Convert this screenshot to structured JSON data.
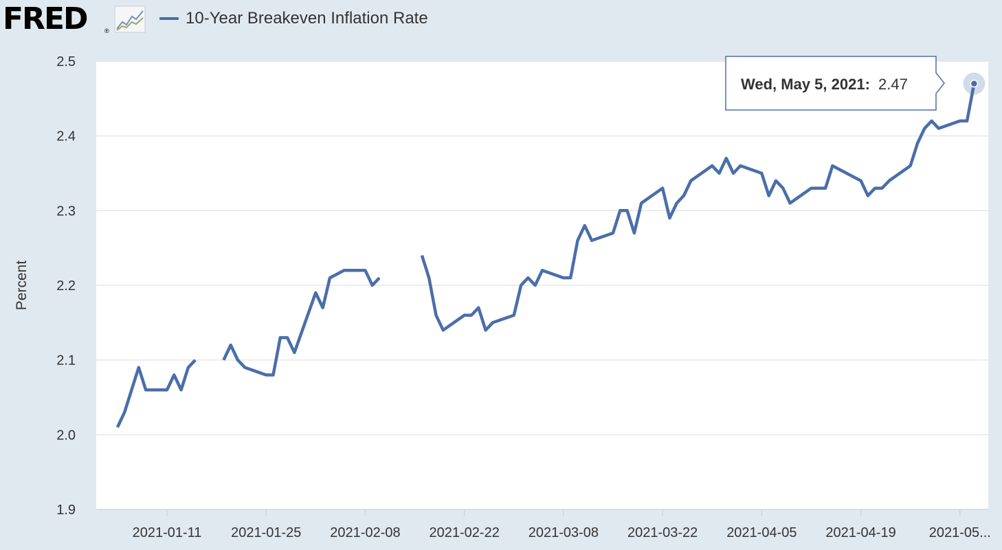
{
  "header": {
    "logo_text": "FRED",
    "logo_reg": "®",
    "graph_icon": "fred-line-graph-icon"
  },
  "chart_data": {
    "type": "line",
    "series": [
      {
        "name": "10-Year Breakeven Inflation Rate",
        "color": "#4a6ea9",
        "points": [
          [
            "2021-01-04",
            2.01
          ],
          [
            "2021-01-05",
            2.03
          ],
          [
            "2021-01-06",
            2.06
          ],
          [
            "2021-01-07",
            2.09
          ],
          [
            "2021-01-08",
            2.06
          ],
          [
            "2021-01-11",
            2.06
          ],
          [
            "2021-01-12",
            2.08
          ],
          [
            "2021-01-13",
            2.06
          ],
          [
            "2021-01-14",
            2.09
          ],
          [
            "2021-01-15",
            2.1
          ],
          [
            "2021-01-18",
            null
          ],
          [
            "2021-01-19",
            2.1
          ],
          [
            "2021-01-20",
            2.12
          ],
          [
            "2021-01-21",
            2.1
          ],
          [
            "2021-01-22",
            2.09
          ],
          [
            "2021-01-25",
            2.08
          ],
          [
            "2021-01-26",
            2.08
          ],
          [
            "2021-01-27",
            2.13
          ],
          [
            "2021-01-28",
            2.13
          ],
          [
            "2021-01-29",
            2.11
          ],
          [
            "2021-02-01",
            2.19
          ],
          [
            "2021-02-02",
            2.17
          ],
          [
            "2021-02-03",
            2.21
          ],
          [
            "2021-02-04",
            2.215
          ],
          [
            "2021-02-05",
            2.22
          ],
          [
            "2021-02-08",
            2.22
          ],
          [
            "2021-02-09",
            2.2
          ],
          [
            "2021-02-10",
            2.21
          ],
          [
            "2021-02-11",
            null
          ],
          [
            "2021-02-12",
            null
          ],
          [
            "2021-02-15",
            null
          ],
          [
            "2021-02-16",
            2.24
          ],
          [
            "2021-02-17",
            2.21
          ],
          [
            "2021-02-18",
            2.16
          ],
          [
            "2021-02-19",
            2.14
          ],
          [
            "2021-02-22",
            2.16
          ],
          [
            "2021-02-23",
            2.16
          ],
          [
            "2021-02-24",
            2.17
          ],
          [
            "2021-02-25",
            2.14
          ],
          [
            "2021-02-26",
            2.15
          ],
          [
            "2021-03-01",
            2.16
          ],
          [
            "2021-03-02",
            2.2
          ],
          [
            "2021-03-03",
            2.21
          ],
          [
            "2021-03-04",
            2.2
          ],
          [
            "2021-03-05",
            2.22
          ],
          [
            "2021-03-08",
            2.21
          ],
          [
            "2021-03-09",
            2.21
          ],
          [
            "2021-03-10",
            2.26
          ],
          [
            "2021-03-11",
            2.28
          ],
          [
            "2021-03-12",
            2.26
          ],
          [
            "2021-03-15",
            2.27
          ],
          [
            "2021-03-16",
            2.3
          ],
          [
            "2021-03-17",
            2.3
          ],
          [
            "2021-03-18",
            2.27
          ],
          [
            "2021-03-19",
            2.31
          ],
          [
            "2021-03-22",
            2.33
          ],
          [
            "2021-03-23",
            2.29
          ],
          [
            "2021-03-24",
            2.31
          ],
          [
            "2021-03-25",
            2.32
          ],
          [
            "2021-03-26",
            2.34
          ],
          [
            "2021-03-29",
            2.36
          ],
          [
            "2021-03-30",
            2.35
          ],
          [
            "2021-03-31",
            2.37
          ],
          [
            "2021-04-01",
            2.35
          ],
          [
            "2021-04-02",
            2.36
          ],
          [
            "2021-04-05",
            2.35
          ],
          [
            "2021-04-06",
            2.32
          ],
          [
            "2021-04-07",
            2.34
          ],
          [
            "2021-04-08",
            2.33
          ],
          [
            "2021-04-09",
            2.31
          ],
          [
            "2021-04-12",
            2.33
          ],
          [
            "2021-04-13",
            2.33
          ],
          [
            "2021-04-14",
            2.33
          ],
          [
            "2021-04-15",
            2.36
          ],
          [
            "2021-04-16",
            2.355
          ],
          [
            "2021-04-19",
            2.34
          ],
          [
            "2021-04-20",
            2.32
          ],
          [
            "2021-04-21",
            2.33
          ],
          [
            "2021-04-22",
            2.33
          ],
          [
            "2021-04-23",
            2.34
          ],
          [
            "2021-04-26",
            2.36
          ],
          [
            "2021-04-27",
            2.39
          ],
          [
            "2021-04-28",
            2.41
          ],
          [
            "2021-04-29",
            2.42
          ],
          [
            "2021-04-30",
            2.41
          ],
          [
            "2021-05-03",
            2.42
          ],
          [
            "2021-05-04",
            2.42
          ],
          [
            "2021-05-05",
            2.47
          ]
        ]
      }
    ],
    "ylabel": "Percent",
    "ylim": [
      1.9,
      2.5
    ],
    "yticks": [
      "1.9",
      "2.0",
      "2.1",
      "2.2",
      "2.3",
      "2.4",
      "2.5"
    ],
    "xlim": [
      "2021-01-01",
      "2021-05-07"
    ],
    "xticks": [
      {
        "date": "2021-01-11",
        "label": "2021-01-11"
      },
      {
        "date": "2021-01-25",
        "label": "2021-01-25"
      },
      {
        "date": "2021-02-08",
        "label": "2021-02-08"
      },
      {
        "date": "2021-02-22",
        "label": "2021-02-22"
      },
      {
        "date": "2021-03-08",
        "label": "2021-03-08"
      },
      {
        "date": "2021-03-22",
        "label": "2021-03-22"
      },
      {
        "date": "2021-04-05",
        "label": "2021-04-05"
      },
      {
        "date": "2021-04-19",
        "label": "2021-04-19"
      },
      {
        "date": "2021-05-03",
        "label": "2021-05..."
      }
    ],
    "grid": true,
    "legend": "top-left",
    "tooltip": {
      "date": "2021-05-05",
      "label": "Wed, May 5, 2021:",
      "value": "2.47"
    }
  }
}
